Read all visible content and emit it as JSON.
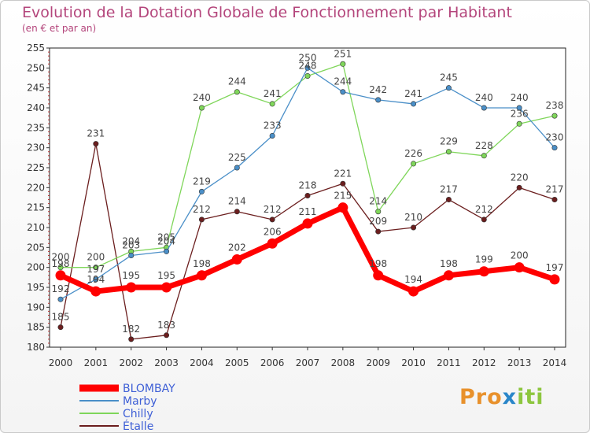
{
  "chart_data": {
    "type": "line",
    "title": "Evolution de la Dotation Globale de Fonctionnement par Habitant",
    "subtitle": "(en € et par an)",
    "xlabel": "",
    "ylabel": "",
    "ylim": [
      180,
      255
    ],
    "yticks": [
      180,
      185,
      190,
      195,
      200,
      205,
      210,
      215,
      220,
      225,
      230,
      235,
      240,
      245,
      250,
      255
    ],
    "x": [
      "2000",
      "2001",
      "2002",
      "2003",
      "2004",
      "2005",
      "2006",
      "2007",
      "2008",
      "2009",
      "2010",
      "2011",
      "2012",
      "2013",
      "2014"
    ],
    "series": [
      {
        "name": "BLOMBAY",
        "color": "#ff0000",
        "values": [
          198,
          194,
          195,
          195,
          198,
          202,
          206,
          211,
          215,
          198,
          194,
          198,
          199,
          200,
          197
        ]
      },
      {
        "name": "Marby",
        "color": "#4a8fc8",
        "values": [
          192,
          197,
          203,
          204,
          219,
          225,
          233,
          250,
          244,
          242,
          241,
          245,
          240,
          240,
          230
        ]
      },
      {
        "name": "Chilly",
        "color": "#7fd65a",
        "values": [
          200,
          200,
          204,
          205,
          240,
          244,
          241,
          248,
          251,
          214,
          226,
          229,
          228,
          236,
          238
        ]
      },
      {
        "name": "Étalle",
        "color": "#6b1e1e",
        "values": [
          185,
          231,
          182,
          183,
          212,
          214,
          212,
          218,
          221,
          209,
          210,
          217,
          212,
          220,
          217
        ]
      }
    ],
    "legend_position": "bottom-left",
    "grid": false
  },
  "logo": {
    "parts": [
      "Pro",
      "x",
      "iti"
    ]
  }
}
